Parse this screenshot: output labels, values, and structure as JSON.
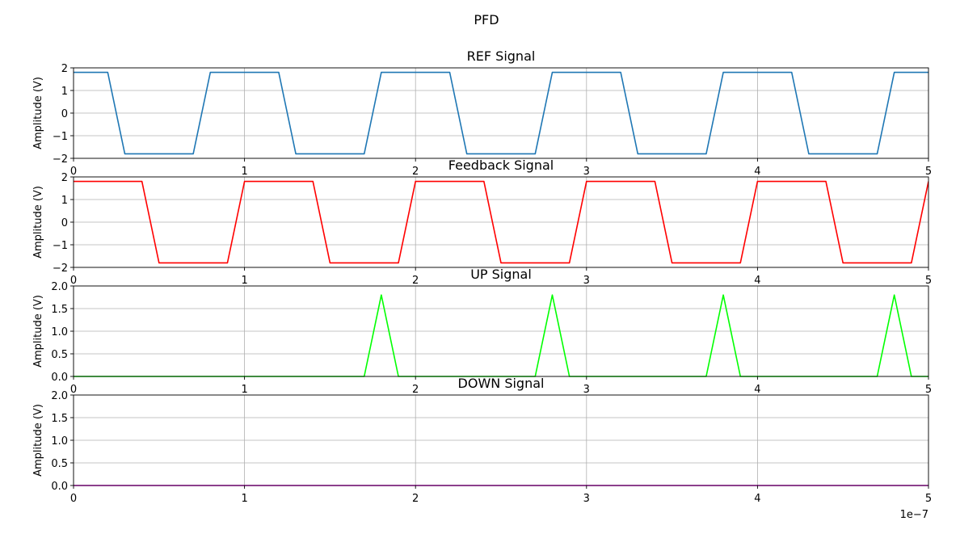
{
  "suptitle": "PFD",
  "x_offset_label": "1e−7",
  "chart_data": [
    {
      "type": "line",
      "title": "REF Signal",
      "ylabel": "Amplitude (V)",
      "xlim": [
        0,
        5
      ],
      "ylim": [
        -2,
        2
      ],
      "xticks": [
        0,
        1,
        2,
        3,
        4,
        5
      ],
      "xtick_labels": [
        "0",
        "1",
        "2",
        "3",
        "4",
        "5"
      ],
      "yticks": [
        -2,
        -1,
        0,
        1,
        2
      ],
      "ytick_labels": [
        "−2",
        "−1",
        "0",
        "1",
        "2"
      ],
      "grid": true,
      "series": [
        {
          "color": "#1f77b4",
          "x": [
            0,
            0.2,
            0.3,
            0.7,
            0.8,
            1.2,
            1.3,
            1.7,
            1.8,
            2.2,
            2.3,
            2.7,
            2.8,
            3.2,
            3.3,
            3.7,
            3.8,
            4.2,
            4.3,
            4.7,
            4.8,
            5.0
          ],
          "y": [
            1.8,
            1.8,
            -1.8,
            -1.8,
            1.8,
            1.8,
            -1.8,
            -1.8,
            1.8,
            1.8,
            -1.8,
            -1.8,
            1.8,
            1.8,
            -1.8,
            -1.8,
            1.8,
            1.8,
            -1.8,
            -1.8,
            1.8,
            1.8
          ]
        }
      ]
    },
    {
      "type": "line",
      "title": "Feedback Signal",
      "ylabel": "Amplitude (V)",
      "xlim": [
        0,
        5
      ],
      "ylim": [
        -2,
        2
      ],
      "xticks": [
        0,
        1,
        2,
        3,
        4,
        5
      ],
      "xtick_labels": [
        "0",
        "1",
        "2",
        "3",
        "4",
        "5"
      ],
      "yticks": [
        -2,
        -1,
        0,
        1,
        2
      ],
      "ytick_labels": [
        "−2",
        "−1",
        "0",
        "1",
        "2"
      ],
      "grid": true,
      "series": [
        {
          "color": "#ff0000",
          "x": [
            0,
            0.4,
            0.5,
            0.9,
            1.0,
            1.4,
            1.5,
            1.9,
            2.0,
            2.4,
            2.5,
            2.9,
            3.0,
            3.4,
            3.5,
            3.9,
            4.0,
            4.4,
            4.5,
            4.9,
            5.0
          ],
          "y": [
            1.8,
            1.8,
            -1.8,
            -1.8,
            1.8,
            1.8,
            -1.8,
            -1.8,
            1.8,
            1.8,
            -1.8,
            -1.8,
            1.8,
            1.8,
            -1.8,
            -1.8,
            1.8,
            1.8,
            -1.8,
            -1.8,
            1.8
          ]
        }
      ]
    },
    {
      "type": "line",
      "title": "UP Signal",
      "ylabel": "Amplitude (V)",
      "xlim": [
        0,
        5
      ],
      "ylim": [
        0,
        2
      ],
      "xticks": [
        0,
        1,
        2,
        3,
        4,
        5
      ],
      "xtick_labels": [
        "0",
        "1",
        "2",
        "3",
        "4",
        "5"
      ],
      "yticks": [
        0,
        0.5,
        1.0,
        1.5,
        2.0
      ],
      "ytick_labels": [
        "0.0",
        "0.5",
        "1.0",
        "1.5",
        "2.0"
      ],
      "grid": true,
      "series": [
        {
          "color": "#00ff00",
          "x": [
            0,
            1.7,
            1.8,
            1.9,
            2.7,
            2.8,
            2.9,
            3.7,
            3.8,
            3.9,
            4.7,
            4.8,
            4.9,
            5.0
          ],
          "y": [
            0,
            0,
            1.8,
            0,
            0,
            1.8,
            0,
            0,
            1.8,
            0,
            0,
            1.8,
            0,
            0
          ]
        }
      ]
    },
    {
      "type": "line",
      "title": "DOWN Signal",
      "ylabel": "Amplitude (V)",
      "xlim": [
        0,
        5
      ],
      "ylim": [
        0,
        2
      ],
      "xticks": [
        0,
        1,
        2,
        3,
        4,
        5
      ],
      "xtick_labels": [
        "0",
        "1",
        "2",
        "3",
        "4",
        "5"
      ],
      "yticks": [
        0,
        0.5,
        1.0,
        1.5,
        2.0
      ],
      "ytick_labels": [
        "0.0",
        "0.5",
        "1.0",
        "1.5",
        "2.0"
      ],
      "grid": true,
      "series": [
        {
          "color": "#ff00ff",
          "x": [
            0,
            5.0
          ],
          "y": [
            0,
            0
          ]
        }
      ]
    }
  ]
}
